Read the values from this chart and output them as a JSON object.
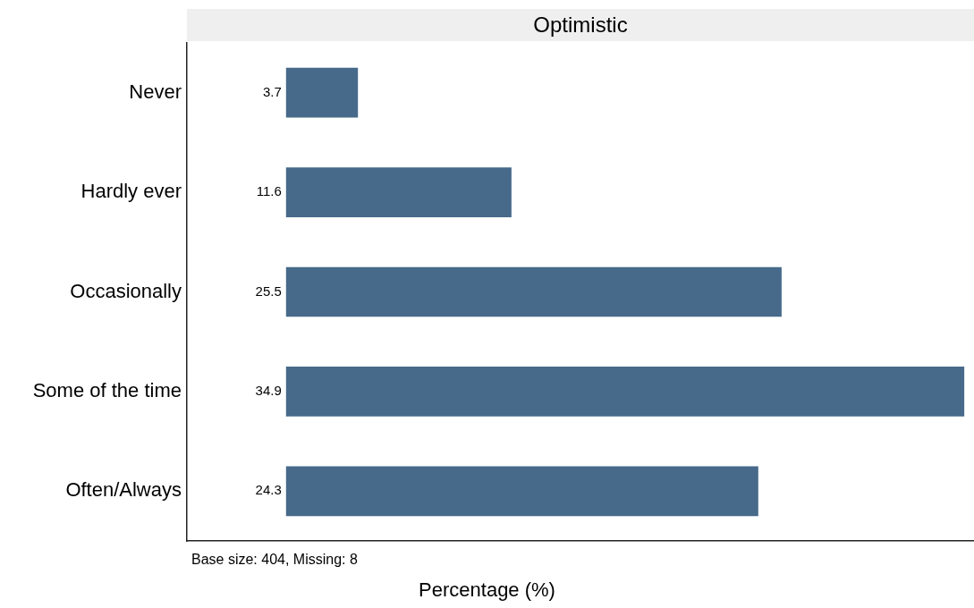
{
  "chart_data": {
    "type": "bar",
    "orientation": "horizontal",
    "title": "Optimistic",
    "xlabel": "Percentage (%)",
    "categories": [
      "Never",
      "Hardly ever",
      "Occasionally",
      "Some of the time",
      "Often/Always"
    ],
    "values": [
      3.7,
      11.6,
      25.5,
      34.9,
      24.3
    ],
    "color": "#476a8a",
    "xlim": [
      -5.1,
      35.4
    ],
    "data_labels": true,
    "grid": false,
    "legend": false,
    "tick_labels": "y",
    "annotations": [
      "Base size: 404, Missing: 8"
    ]
  }
}
